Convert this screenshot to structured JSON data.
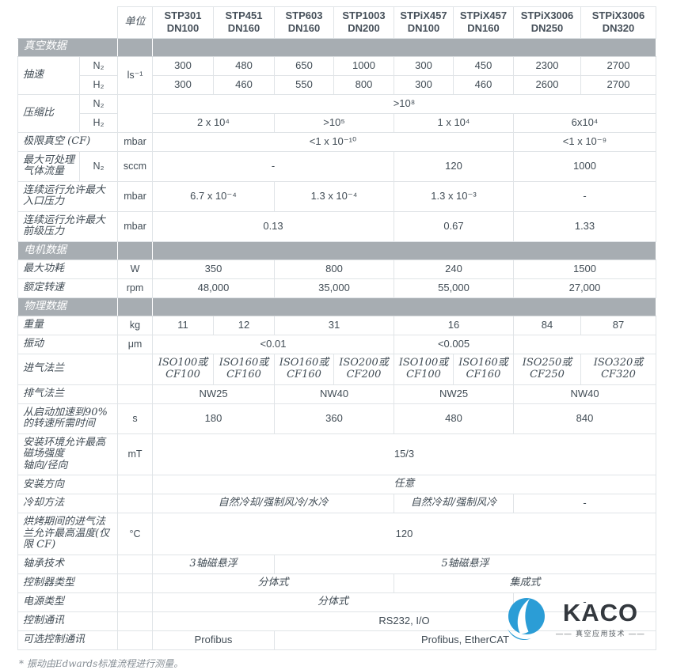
{
  "table": {
    "unit_header": "单位",
    "columns": [
      {
        "model": "STP301",
        "flange": "DN100"
      },
      {
        "model": "STP451",
        "flange": "DN160"
      },
      {
        "model": "STP603",
        "flange": "DN160"
      },
      {
        "model": "STP1003",
        "flange": "DN200"
      },
      {
        "model": "STPiX457",
        "flange": "DN100"
      },
      {
        "model": "STPiX457",
        "flange": "DN160"
      },
      {
        "model": "STPiX3006",
        "flange": "DN250"
      },
      {
        "model": "STPiX3006",
        "flange": "DN320"
      }
    ],
    "rows": [
      {
        "band": "真空数据"
      },
      {
        "label": "抽速",
        "lr": 2,
        "sub": "N₂",
        "unit": "ls⁻¹",
        "ur": 2,
        "cells": [
          [
            "300"
          ],
          [
            "480"
          ],
          [
            "650"
          ],
          [
            "1000"
          ],
          [
            "300"
          ],
          [
            "450"
          ],
          [
            "2300"
          ],
          [
            "2700"
          ]
        ]
      },
      {
        "sub": "H₂",
        "cells": [
          [
            "300"
          ],
          [
            "460"
          ],
          [
            "550"
          ],
          [
            "800"
          ],
          [
            "300"
          ],
          [
            "460"
          ],
          [
            "2600"
          ],
          [
            "2700"
          ]
        ]
      },
      {
        "label": "压缩比",
        "lr": 2,
        "sub": "N₂",
        "unit": "",
        "ur": 2,
        "cells": [
          [
            ">10⁸",
            8
          ]
        ]
      },
      {
        "sub": "H₂",
        "cells": [
          [
            "2 x 10⁴",
            2
          ],
          [
            ">10⁵",
            2
          ],
          [
            "1 x 10⁴",
            2
          ],
          [
            "6x10⁴",
            2
          ]
        ]
      },
      {
        "label": "极限真空 (CF)",
        "lc": 2,
        "unit": "mbar",
        "cells": [
          [
            "<1 x 10⁻¹⁰",
            6
          ],
          [
            "<1 x 10⁻⁹",
            2
          ]
        ]
      },
      {
        "label": "最大可处理\n气体流量",
        "sub": "N₂",
        "unit": "sccm",
        "cells": [
          [
            "-",
            4
          ],
          [
            "120",
            2
          ],
          [
            "1000",
            2
          ]
        ]
      },
      {
        "label": "连续运行允许最大\n入口压力",
        "lc": 2,
        "unit": "mbar",
        "cells": [
          [
            "6.7 x 10⁻⁴",
            2
          ],
          [
            "1.3 x 10⁻⁴",
            2
          ],
          [
            "1.3 x 10⁻³",
            2
          ],
          [
            "-",
            2
          ]
        ]
      },
      {
        "label": "连续运行允许最大\n前级压力",
        "lc": 2,
        "unit": "mbar",
        "cells": [
          [
            "0.13",
            4
          ],
          [
            "0.67",
            2
          ],
          [
            "1.33",
            2
          ]
        ]
      },
      {
        "band": "电机数据"
      },
      {
        "label": "最大功耗",
        "lc": 2,
        "unit": "W",
        "cells": [
          [
            "350",
            2
          ],
          [
            "800",
            2
          ],
          [
            "240",
            2
          ],
          [
            "1500",
            2
          ]
        ]
      },
      {
        "label": "额定转速",
        "lc": 2,
        "unit": "rpm",
        "cells": [
          [
            "48,000",
            2
          ],
          [
            "35,000",
            2
          ],
          [
            "55,000",
            2
          ],
          [
            "27,000",
            2
          ]
        ]
      },
      {
        "band": "物理数据"
      },
      {
        "label": "重量",
        "lc": 2,
        "unit": "kg",
        "cells": [
          [
            "11"
          ],
          [
            "12"
          ],
          [
            "31",
            2
          ],
          [
            "16",
            2
          ],
          [
            "84"
          ],
          [
            "87"
          ]
        ]
      },
      {
        "label": "振动",
        "lc": 2,
        "unit": "μm",
        "cells": [
          [
            "<0.01",
            4
          ],
          [
            "<0.005",
            2
          ],
          [
            "",
            2
          ]
        ]
      },
      {
        "label": "进气法兰",
        "lc": 2,
        "unit": "",
        "cells": [
          [
            "ISO100或\nCF100"
          ],
          [
            "ISO160或\nCF160"
          ],
          [
            "ISO160或\nCF160"
          ],
          [
            "ISO200或\nCF200"
          ],
          [
            "ISO100或\nCF100"
          ],
          [
            "ISO160或\nCF160"
          ],
          [
            "ISO250或\nCF250"
          ],
          [
            "ISO320或\nCF320"
          ]
        ]
      },
      {
        "label": "排气法兰",
        "lc": 2,
        "unit": "",
        "cells": [
          [
            "NW25",
            2
          ],
          [
            "NW40",
            2
          ],
          [
            "NW25",
            2
          ],
          [
            "NW40",
            2
          ]
        ]
      },
      {
        "label": "从启动加速到90%\n的转速所需时间",
        "lc": 2,
        "unit": "s",
        "cells": [
          [
            "180",
            2
          ],
          [
            "360",
            2
          ],
          [
            "480",
            2
          ],
          [
            "840",
            2
          ]
        ]
      },
      {
        "label": "安装环境允许最高\n磁场强度\n轴向/径向",
        "lc": 2,
        "unit": "mT",
        "cells": [
          [
            "15/3",
            8
          ]
        ]
      },
      {
        "label": "安装方向",
        "lc": 2,
        "unit": "",
        "cells": [
          [
            "任意",
            8
          ]
        ]
      },
      {
        "label": "冷却方法",
        "lc": 2,
        "unit": "",
        "cells": [
          [
            "自然冷却/强制风冷/水冷",
            4
          ],
          [
            "自然冷却/强制风冷",
            2
          ],
          [
            "-",
            2
          ]
        ]
      },
      {
        "label": "烘烤期间的进气法\n兰允许最高温度(仅\n限 CF)",
        "lc": 2,
        "unit": "°C",
        "cells": [
          [
            "120",
            8
          ]
        ]
      },
      {
        "label": "轴承技术",
        "lc": 2,
        "unit": "",
        "cells": [
          [
            "3轴磁悬浮",
            2
          ],
          [
            "5轴磁悬浮",
            6
          ]
        ]
      },
      {
        "label": "控制器类型",
        "lc": 2,
        "unit": "",
        "cells": [
          [
            "分体式",
            4
          ],
          [
            "集成式",
            4
          ]
        ]
      },
      {
        "label": "电源类型",
        "lc": 2,
        "unit": "",
        "cells": [
          [
            "分体式",
            6
          ],
          [
            "-",
            2
          ]
        ]
      },
      {
        "label": "控制通讯",
        "lc": 2,
        "unit": "",
        "cells": [
          [
            "RS232, I/O",
            8
          ]
        ]
      },
      {
        "label": "可选控制通讯",
        "lc": 2,
        "unit": "",
        "cells": [
          [
            "Profibus",
            2
          ],
          [
            "Profibus, EtherCAT",
            6
          ]
        ]
      }
    ]
  },
  "footnote": "* 振动由Edwards标准流程进行测量。",
  "logo": {
    "name": "KACO",
    "tagline": "—— 真空应用技术 ——",
    "blue": "#2b9dd6",
    "dark": "#33383e"
  },
  "colors": {
    "section_band": "#a7adb2",
    "text": "#414c55",
    "border": "#e0e4e7",
    "footnote_text": "#878f96"
  }
}
